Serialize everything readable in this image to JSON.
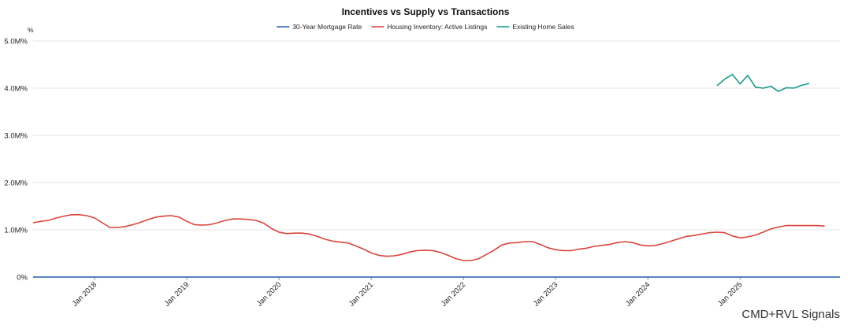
{
  "chart_data": {
    "type": "line",
    "title": "Incentives vs Supply vs Transactions",
    "y_unit_label": "%",
    "ylim": [
      0,
      5000000
    ],
    "y_ticks": [
      {
        "value": 0,
        "label": "0%"
      },
      {
        "value": 1000000,
        "label": "1.0M%"
      },
      {
        "value": 2000000,
        "label": "2.0M%"
      },
      {
        "value": 3000000,
        "label": "3.0M%"
      },
      {
        "value": 4000000,
        "label": "4.0M%"
      },
      {
        "value": 5000000,
        "label": "5.0M%"
      }
    ],
    "xlim": [
      2017.333,
      2026.083
    ],
    "x_ticks": [
      {
        "value": 2018.0,
        "label": "Jan 2018"
      },
      {
        "value": 2019.0,
        "label": "Jan 2019"
      },
      {
        "value": 2020.0,
        "label": "Jan 2020"
      },
      {
        "value": 2021.0,
        "label": "Jan 2021"
      },
      {
        "value": 2022.0,
        "label": "Jan 2022"
      },
      {
        "value": 2023.0,
        "label": "Jan 2023"
      },
      {
        "value": 2024.0,
        "label": "Jan 2024"
      },
      {
        "value": 2025.0,
        "label": "Jan 2025"
      }
    ],
    "series": [
      {
        "name": "30-Year Mortgage Rate",
        "color": "#1f5fa8",
        "points": [
          [
            2017.333,
            5
          ],
          [
            2026.083,
            7
          ]
        ]
      },
      {
        "name": "Housing Inventory: Active Listings",
        "color": "#d9453b",
        "points": [
          [
            2017.333,
            1150000
          ],
          [
            2017.417,
            1180000
          ],
          [
            2017.5,
            1200000
          ],
          [
            2017.583,
            1250000
          ],
          [
            2017.667,
            1290000
          ],
          [
            2017.75,
            1320000
          ],
          [
            2017.833,
            1320000
          ],
          [
            2017.917,
            1300000
          ],
          [
            2018.0,
            1250000
          ],
          [
            2018.083,
            1150000
          ],
          [
            2018.167,
            1050000
          ],
          [
            2018.25,
            1050000
          ],
          [
            2018.333,
            1070000
          ],
          [
            2018.417,
            1110000
          ],
          [
            2018.5,
            1160000
          ],
          [
            2018.583,
            1220000
          ],
          [
            2018.667,
            1270000
          ],
          [
            2018.75,
            1290000
          ],
          [
            2018.833,
            1300000
          ],
          [
            2018.917,
            1270000
          ],
          [
            2019.0,
            1180000
          ],
          [
            2019.083,
            1110000
          ],
          [
            2019.167,
            1100000
          ],
          [
            2019.25,
            1110000
          ],
          [
            2019.333,
            1150000
          ],
          [
            2019.417,
            1200000
          ],
          [
            2019.5,
            1230000
          ],
          [
            2019.583,
            1230000
          ],
          [
            2019.667,
            1220000
          ],
          [
            2019.75,
            1200000
          ],
          [
            2019.833,
            1140000
          ],
          [
            2019.917,
            1030000
          ],
          [
            2020.0,
            950000
          ],
          [
            2020.083,
            920000
          ],
          [
            2020.167,
            930000
          ],
          [
            2020.25,
            930000
          ],
          [
            2020.333,
            910000
          ],
          [
            2020.417,
            860000
          ],
          [
            2020.5,
            800000
          ],
          [
            2020.583,
            760000
          ],
          [
            2020.667,
            740000
          ],
          [
            2020.75,
            720000
          ],
          [
            2020.833,
            660000
          ],
          [
            2020.917,
            590000
          ],
          [
            2021.0,
            510000
          ],
          [
            2021.083,
            460000
          ],
          [
            2021.167,
            440000
          ],
          [
            2021.25,
            450000
          ],
          [
            2021.333,
            480000
          ],
          [
            2021.417,
            530000
          ],
          [
            2021.5,
            560000
          ],
          [
            2021.583,
            570000
          ],
          [
            2021.667,
            560000
          ],
          [
            2021.75,
            520000
          ],
          [
            2021.833,
            460000
          ],
          [
            2021.917,
            390000
          ],
          [
            2022.0,
            350000
          ],
          [
            2022.083,
            350000
          ],
          [
            2022.167,
            390000
          ],
          [
            2022.25,
            480000
          ],
          [
            2022.333,
            570000
          ],
          [
            2022.417,
            680000
          ],
          [
            2022.5,
            720000
          ],
          [
            2022.583,
            730000
          ],
          [
            2022.667,
            750000
          ],
          [
            2022.75,
            750000
          ],
          [
            2022.833,
            690000
          ],
          [
            2022.917,
            620000
          ],
          [
            2023.0,
            580000
          ],
          [
            2023.083,
            560000
          ],
          [
            2023.167,
            560000
          ],
          [
            2023.25,
            590000
          ],
          [
            2023.333,
            610000
          ],
          [
            2023.417,
            650000
          ],
          [
            2023.5,
            670000
          ],
          [
            2023.583,
            690000
          ],
          [
            2023.667,
            730000
          ],
          [
            2023.75,
            750000
          ],
          [
            2023.833,
            730000
          ],
          [
            2023.917,
            680000
          ],
          [
            2024.0,
            660000
          ],
          [
            2024.083,
            670000
          ],
          [
            2024.167,
            710000
          ],
          [
            2024.25,
            760000
          ],
          [
            2024.333,
            810000
          ],
          [
            2024.417,
            860000
          ],
          [
            2024.5,
            880000
          ],
          [
            2024.583,
            910000
          ],
          [
            2024.667,
            940000
          ],
          [
            2024.75,
            950000
          ],
          [
            2024.833,
            940000
          ],
          [
            2024.917,
            870000
          ],
          [
            2025.0,
            830000
          ],
          [
            2025.083,
            850000
          ],
          [
            2025.167,
            890000
          ],
          [
            2025.25,
            950000
          ],
          [
            2025.333,
            1020000
          ],
          [
            2025.417,
            1060000
          ],
          [
            2025.5,
            1090000
          ],
          [
            2025.583,
            1090000
          ],
          [
            2025.667,
            1090000
          ],
          [
            2025.75,
            1090000
          ],
          [
            2025.833,
            1090000
          ],
          [
            2025.917,
            1080000
          ]
        ]
      },
      {
        "name": "Existing Home Sales",
        "color": "#1a9a8a",
        "points": [
          [
            2024.75,
            4050000
          ],
          [
            2024.833,
            4190000
          ],
          [
            2024.917,
            4290000
          ],
          [
            2025.0,
            4090000
          ],
          [
            2025.083,
            4270000
          ],
          [
            2025.167,
            4020000
          ],
          [
            2025.25,
            4000000
          ],
          [
            2025.333,
            4040000
          ],
          [
            2025.417,
            3930000
          ],
          [
            2025.5,
            4010000
          ],
          [
            2025.583,
            4000000
          ],
          [
            2025.667,
            4060000
          ],
          [
            2025.75,
            4100000
          ]
        ]
      }
    ],
    "watermark": "CMD+RVL Signals"
  }
}
